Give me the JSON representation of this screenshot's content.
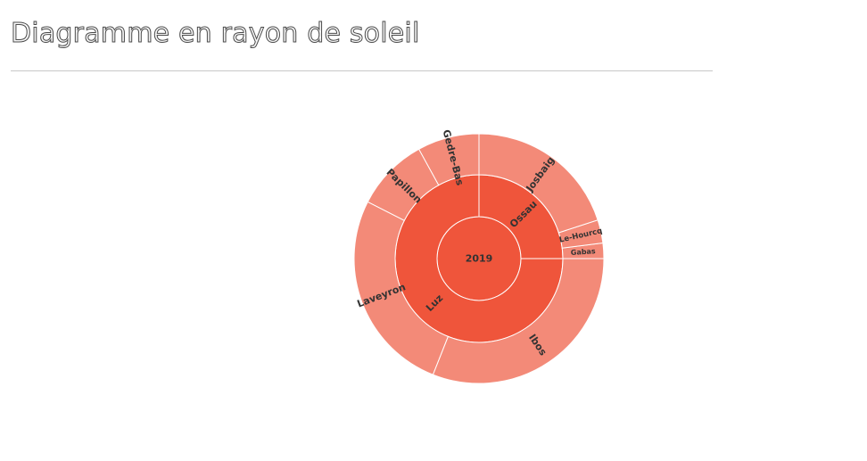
{
  "page": {
    "title": "Diagramme en rayon de soleil"
  },
  "colors": {
    "root": "#ffffff",
    "ring1": "#ef553b",
    "ring2": "#f38a78",
    "border": "#ffffff",
    "text": "#333333",
    "rule": "#c8c8c8"
  },
  "chart_data": {
    "type": "sunburst",
    "title": "",
    "root": {
      "label": "2019"
    },
    "children": [
      {
        "label": "Ossau",
        "start": 0,
        "end": 0.25,
        "children": [
          {
            "label": "Gabas",
            "start": 0,
            "end": 0.02
          },
          {
            "label": "Le-Hourcq",
            "start": 0.02,
            "end": 0.05
          },
          {
            "label": "Josbaig",
            "start": 0.05,
            "end": 0.25
          }
        ]
      },
      {
        "label": "Luz",
        "start": 0.25,
        "end": 1,
        "children": [
          {
            "label": "Gedre-Bas",
            "start": 0.25,
            "end": 0.33
          },
          {
            "label": "Papillon",
            "start": 0.33,
            "end": 0.425
          },
          {
            "label": "Laveyron",
            "start": 0.425,
            "end": 0.69
          },
          {
            "label": "Ibos",
            "start": 0.69,
            "end": 1
          }
        ]
      }
    ]
  }
}
